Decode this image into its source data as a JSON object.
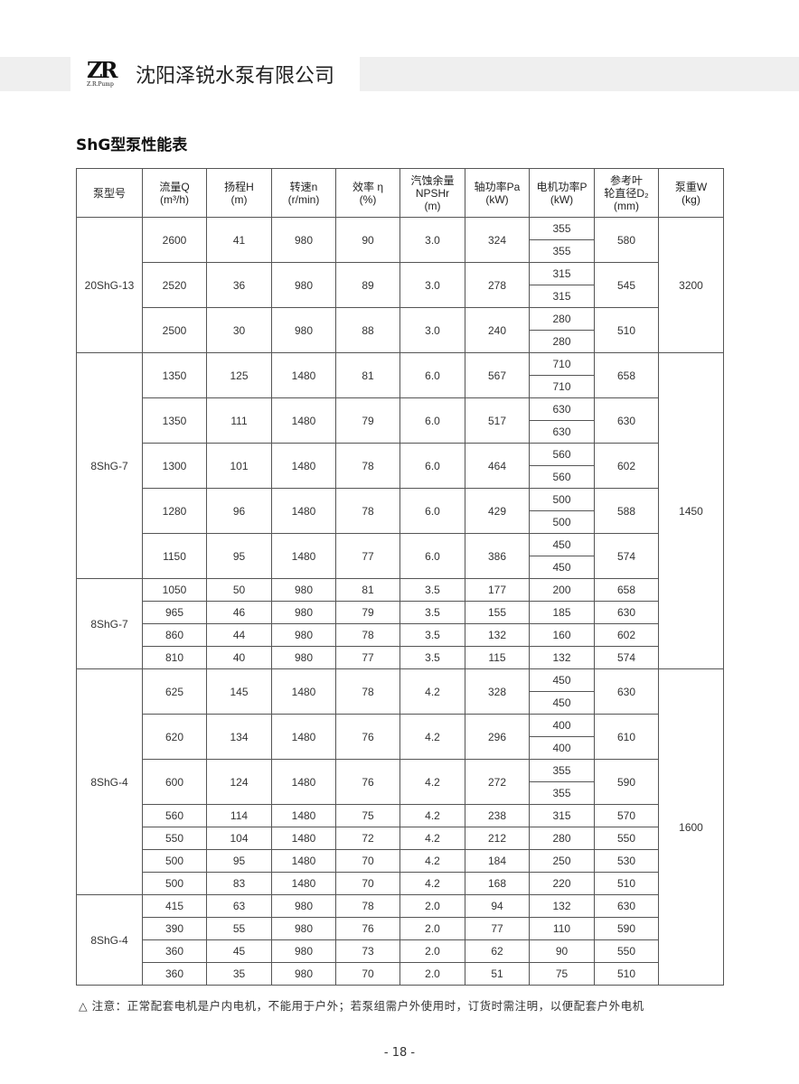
{
  "header": {
    "logo_mark": "ZR",
    "logo_sub": "Z.R.Pump",
    "company": "沈阳泽锐水泵有限公司"
  },
  "title": "ShG型泵性能表",
  "columns": [
    "泵型号",
    "流量Q\n(m³/h)",
    "扬程H\n(m)",
    "转速n\n(r/min)",
    "效率 η\n(%)",
    "汽蚀余量\nNPSHr\n(m)",
    "轴功率Pa\n(kW)",
    "电机功率P\n(kW)",
    "参考叶\n轮直径D₂\n(mm)",
    "泵重W\n(kg)"
  ],
  "groups": [
    {
      "model": "20ShG-13",
      "weight": "3200",
      "weight_span": 1,
      "rows": [
        [
          "2600",
          "41",
          "980",
          "90",
          "3.0",
          "324",
          [
            "355",
            "355"
          ],
          "580"
        ],
        [
          "2520",
          "36",
          "980",
          "89",
          "3.0",
          "278",
          [
            "315",
            "315"
          ],
          "545"
        ],
        [
          "2500",
          "30",
          "980",
          "88",
          "3.0",
          "240",
          [
            "280",
            "280"
          ],
          "510"
        ]
      ]
    },
    {
      "model": "8ShG-7",
      "weight": "1450",
      "weight_span": 2,
      "rows": [
        [
          "1350",
          "125",
          "1480",
          "81",
          "6.0",
          "567",
          [
            "710",
            "710"
          ],
          "658"
        ],
        [
          "1350",
          "111",
          "1480",
          "79",
          "6.0",
          "517",
          [
            "630",
            "630"
          ],
          "630"
        ],
        [
          "1300",
          "101",
          "1480",
          "78",
          "6.0",
          "464",
          [
            "560",
            "560"
          ],
          "602"
        ],
        [
          "1280",
          "96",
          "1480",
          "78",
          "6.0",
          "429",
          [
            "500",
            "500"
          ],
          "588"
        ],
        [
          "1150",
          "95",
          "1480",
          "77",
          "6.0",
          "386",
          [
            "450",
            "450"
          ],
          "574"
        ]
      ]
    },
    {
      "model": "8ShG-7",
      "rows": [
        [
          "1050",
          "50",
          "980",
          "81",
          "3.5",
          "177",
          [
            "200"
          ],
          "658"
        ],
        [
          "965",
          "46",
          "980",
          "79",
          "3.5",
          "155",
          [
            "185"
          ],
          "630"
        ],
        [
          "860",
          "44",
          "980",
          "78",
          "3.5",
          "132",
          [
            "160"
          ],
          "602"
        ],
        [
          "810",
          "40",
          "980",
          "77",
          "3.5",
          "115",
          [
            "132"
          ],
          "574"
        ]
      ]
    },
    {
      "model": "8ShG-4",
      "weight": "1600",
      "weight_span": 2,
      "rows": [
        [
          "625",
          "145",
          "1480",
          "78",
          "4.2",
          "328",
          [
            "450",
            "450"
          ],
          "630"
        ],
        [
          "620",
          "134",
          "1480",
          "76",
          "4.2",
          "296",
          [
            "400",
            "400"
          ],
          "610"
        ],
        [
          "600",
          "124",
          "1480",
          "76",
          "4.2",
          "272",
          [
            "355",
            "355"
          ],
          "590"
        ],
        [
          "560",
          "114",
          "1480",
          "75",
          "4.2",
          "238",
          [
            "315"
          ],
          "570"
        ],
        [
          "550",
          "104",
          "1480",
          "72",
          "4.2",
          "212",
          [
            "280"
          ],
          "550"
        ],
        [
          "500",
          "95",
          "1480",
          "70",
          "4.2",
          "184",
          [
            "250"
          ],
          "530"
        ],
        [
          "500",
          "83",
          "1480",
          "70",
          "4.2",
          "168",
          [
            "220"
          ],
          "510"
        ]
      ]
    },
    {
      "model": "8ShG-4",
      "rows": [
        [
          "415",
          "63",
          "980",
          "78",
          "2.0",
          "94",
          [
            "132"
          ],
          "630"
        ],
        [
          "390",
          "55",
          "980",
          "76",
          "2.0",
          "77",
          [
            "110"
          ],
          "590"
        ],
        [
          "360",
          "45",
          "980",
          "73",
          "2.0",
          "62",
          [
            "90"
          ],
          "550"
        ],
        [
          "360",
          "35",
          "980",
          "70",
          "2.0",
          "51",
          [
            "75"
          ],
          "510"
        ]
      ]
    }
  ],
  "note": "△ 注意：正常配套电机是户内电机，不能用于户外；若泵组需户外使用时，订货时需注明，以便配套户外电机",
  "page_number": "- 18 -"
}
